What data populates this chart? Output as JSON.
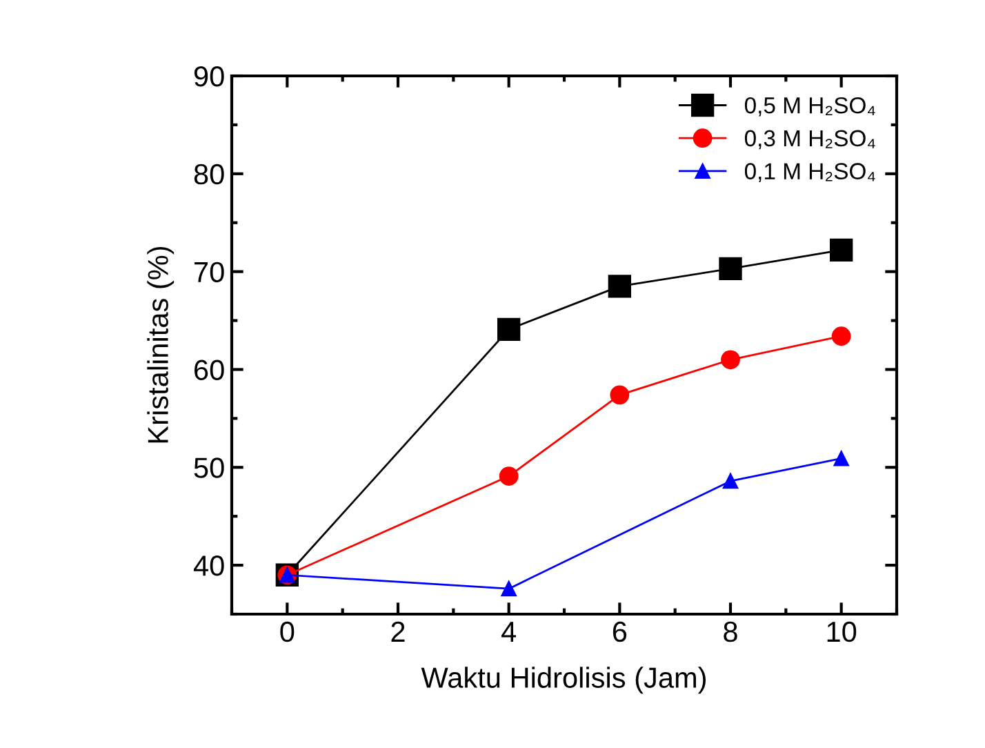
{
  "chart_data": {
    "type": "line",
    "xlabel": "Waktu Hidrolisis (Jam)",
    "ylabel": "Kristalinitas (%)",
    "xlim": [
      -1,
      11
    ],
    "xticks": [
      0,
      2,
      4,
      6,
      8,
      10
    ],
    "ylim": [
      35,
      90
    ],
    "yticks": [
      40,
      50,
      60,
      70,
      80,
      90
    ],
    "grid": false,
    "legend": "top right",
    "line_style": "solid",
    "series": [
      {
        "name": "0,5 M H₂SO₄",
        "color": "#000000",
        "marker": "square",
        "x": [
          0,
          4,
          6,
          8,
          10
        ],
        "values": [
          39.0,
          64.1,
          68.5,
          70.3,
          72.2
        ]
      },
      {
        "name": "0,3 M H₂SO₄",
        "color": "#ff0000",
        "marker": "circle",
        "x": [
          0,
          4,
          6,
          8,
          10
        ],
        "values": [
          39.0,
          49.1,
          57.4,
          61.0,
          63.4
        ]
      },
      {
        "name": "0,1 M H₂SO₄",
        "color": "#0000ff",
        "marker": "triangle",
        "x": [
          0,
          4,
          8,
          10
        ],
        "values": [
          39.0,
          37.6,
          48.6,
          50.9
        ]
      }
    ]
  }
}
